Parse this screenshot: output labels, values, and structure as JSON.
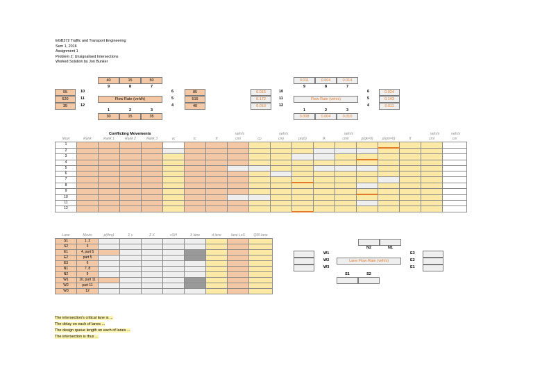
{
  "header": [
    "EGB272 Traffic and Transport Engineering",
    "Sem 1, 2016",
    "Assignment 1",
    "Problem 2: Unsignalised Intersections",
    "Worked Solution by Jon Bunker"
  ],
  "left_diagram": {
    "top_values": [
      "40",
      "15",
      "50"
    ],
    "top_labels": [
      "9",
      "8",
      "7"
    ],
    "left_values": [
      "55",
      "620",
      "35"
    ],
    "left_labels": [
      "10",
      "11",
      "12"
    ],
    "right_labels": [
      "6",
      "5",
      "4"
    ],
    "right_values": [
      "85",
      "515",
      "40"
    ],
    "center": "Flow Rate (veh/h)",
    "bottom_labels": [
      "1",
      "2",
      "3"
    ],
    "bottom_values": [
      "30",
      "15",
      "35"
    ]
  },
  "right_diagram": {
    "top_values": [
      "0.011",
      "0.004",
      "0.014"
    ],
    "top_labels": [
      "9",
      "8",
      "7"
    ],
    "left_values": [
      "0.015",
      "0.172",
      "0.010"
    ],
    "left_labels": [
      "10",
      "11",
      "12"
    ],
    "right_labels": [
      "6",
      "5",
      "4"
    ],
    "right_values": [
      "0.024",
      "0.143",
      "0.011"
    ],
    "center": "Flow Rate (veh/s)",
    "bottom_labels": [
      "1",
      "2",
      "3"
    ],
    "bottom_values": [
      "0.008",
      "0.004",
      "0.010"
    ]
  },
  "conflicting": {
    "title": "Conflicting Movements",
    "units": [
      "veh/s",
      "veh/s",
      "veh/s",
      "veh/s",
      "veh/s"
    ],
    "columns": [
      "Movt",
      "Rank",
      "Rank 1",
      "Rank 2",
      "Rank 3",
      "vc",
      "tc",
      "tf",
      "cmi",
      "cp",
      "cmj",
      "p(q0)",
      "fk",
      "cmk",
      "p(qk=0)",
      "p(qm=0)",
      "fl",
      "cml",
      "cm"
    ],
    "rows": [
      "1",
      "2",
      "3",
      "4",
      "5",
      "6",
      "7",
      "8",
      "9",
      "10",
      "11",
      "12"
    ]
  },
  "lanes": {
    "columns": [
      "Lane",
      "Movts",
      "p(thru)",
      "Σ v",
      "Σ X",
      "cSH",
      "X lane",
      "d lane",
      "lane LoS",
      "Q95 lane"
    ],
    "rows": [
      {
        "lane": "S1",
        "movts": "1, 2"
      },
      {
        "lane": "S2",
        "movts": "3"
      },
      {
        "lane": "E1",
        "movts": "4, part 5"
      },
      {
        "lane": "E2",
        "movts": "part 5"
      },
      {
        "lane": "E3",
        "movts": "6"
      },
      {
        "lane": "N1",
        "movts": "7, 8"
      },
      {
        "lane": "N2",
        "movts": "9"
      },
      {
        "lane": "W1",
        "movts": "10, part 11"
      },
      {
        "lane": "W2",
        "movts": "part 11"
      },
      {
        "lane": "W3",
        "movts": "12"
      }
    ]
  },
  "lane_diagram": {
    "top": [
      "N2",
      "N1"
    ],
    "left": [
      "W1",
      "W2",
      "W3"
    ],
    "right": [
      "E3",
      "E2",
      "E1"
    ],
    "center": "Lane Flow Rate (veh/s)",
    "bottom": [
      "S1",
      "S2"
    ]
  },
  "statements": [
    "The intersection's critical lane is ...",
    "The delay on each of lanes ...",
    "The design queue length on each of lanes ...",
    "The intersection is thus ..."
  ]
}
